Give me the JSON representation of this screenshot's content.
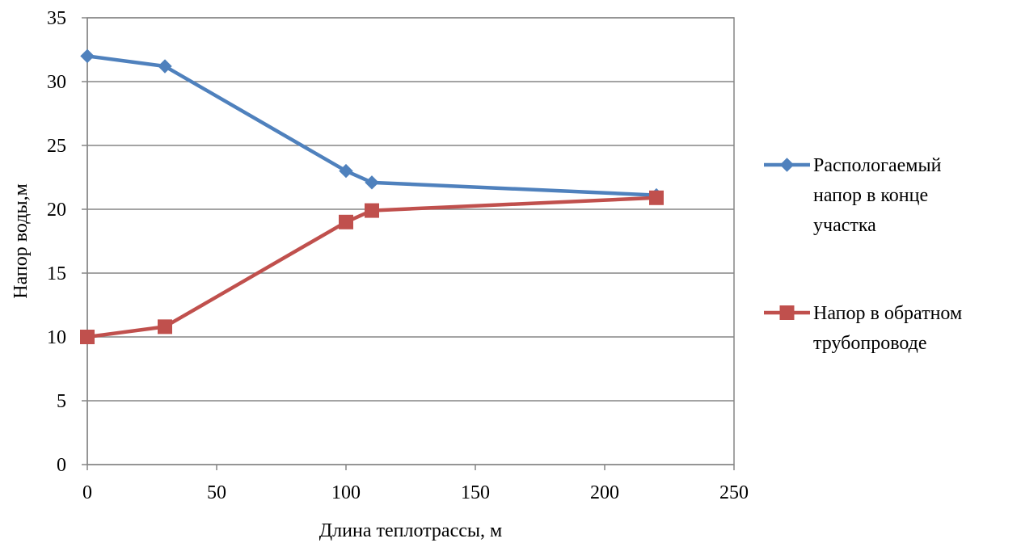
{
  "chart_data": {
    "type": "line",
    "title": "",
    "xlabel": "Длина теплотрассы, м",
    "ylabel": "Напор воды,м",
    "xlim": [
      0,
      250
    ],
    "ylim": [
      0,
      35
    ],
    "xticks": [
      "0",
      "50",
      "100",
      "150",
      "200",
      "250"
    ],
    "yticks": [
      "0",
      "5",
      "10",
      "15",
      "20",
      "25",
      "30",
      "35"
    ],
    "grid": "horizontal",
    "legend_position": "right",
    "series": [
      {
        "name": "Распологаемый напор в конце участка",
        "name_lines": [
          "Распологаемый",
          "напор в конце",
          "участка"
        ],
        "color": "#4F81BD",
        "marker": "diamond",
        "x": [
          0,
          30,
          100,
          110,
          220
        ],
        "y": [
          32,
          31.2,
          23,
          22.1,
          21.1
        ]
      },
      {
        "name": "Напор в обратном трубопроводе",
        "name_lines": [
          "Напор в обратном",
          "трубопроводе"
        ],
        "color": "#C0504D",
        "marker": "square",
        "x": [
          0,
          30,
          100,
          110,
          220
        ],
        "y": [
          10,
          10.8,
          19,
          19.9,
          20.9
        ]
      }
    ]
  }
}
